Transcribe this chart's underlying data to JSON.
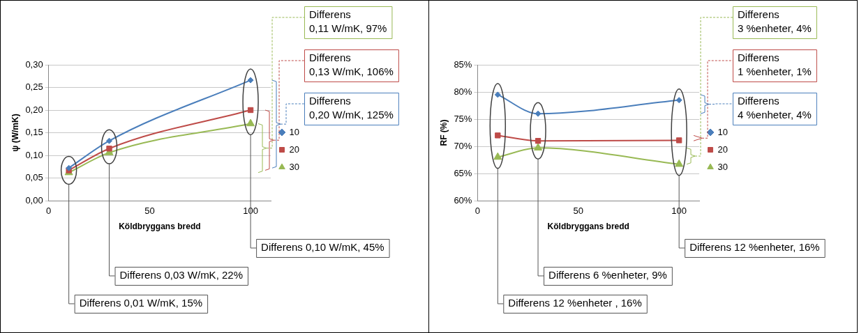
{
  "chart_data": [
    {
      "type": "line",
      "xlabel": "Köldbryggans bredd",
      "ylabel": "ψ (W/mK)",
      "x": [
        10,
        30,
        100
      ],
      "series": [
        {
          "name": "10",
          "color": "#4a7ebb",
          "marker": "diamond",
          "values": [
            0.072,
            0.132,
            0.266
          ]
        },
        {
          "name": "20",
          "color": "#be4b48",
          "marker": "square",
          "values": [
            0.067,
            0.115,
            0.2
          ]
        },
        {
          "name": "30",
          "color": "#98b954",
          "marker": "triangle",
          "values": [
            0.062,
            0.106,
            0.17
          ]
        }
      ],
      "xlim": [
        0,
        110
      ],
      "xticks": [
        0,
        50,
        100
      ],
      "ylim": [
        0,
        0.3
      ],
      "yticks": [
        {
          "value": 0,
          "label": "0,00"
        },
        {
          "value": 0.05,
          "label": "0,05"
        },
        {
          "value": 0.1,
          "label": "0,10"
        },
        {
          "value": 0.15,
          "label": "0,15"
        },
        {
          "value": 0.2,
          "label": "0,20"
        },
        {
          "value": 0.25,
          "label": "0,25"
        },
        {
          "value": 0.3,
          "label": "0,30"
        }
      ],
      "grid": "y",
      "legend": "right",
      "annotations": [
        "Differens\n0,11 W/mK, 97%",
        "Differens\n0,13 W/mK, 106%",
        "Differens\n0,20 W/mK, 125%",
        "Differens 0,10 W/mK, 45%",
        "Differens 0,03 W/mK, 22%",
        "Differens 0,01 W/mK, 15%"
      ]
    },
    {
      "type": "line",
      "xlabel": "Köldbryggans bredd",
      "ylabel": "RF (%)",
      "x": [
        10,
        30,
        100
      ],
      "series": [
        {
          "name": "10",
          "color": "#4a7ebb",
          "marker": "diamond",
          "values": [
            79.5,
            76.0,
            78.5
          ]
        },
        {
          "name": "20",
          "color": "#be4b48",
          "marker": "square",
          "values": [
            72.0,
            71.0,
            71.1
          ]
        },
        {
          "name": "30",
          "color": "#98b954",
          "marker": "triangle",
          "values": [
            68.0,
            69.7,
            66.7
          ]
        }
      ],
      "xlim": [
        0,
        110
      ],
      "xticks": [
        0,
        50,
        100
      ],
      "ylim": [
        60,
        85
      ],
      "yticks": [
        {
          "value": 60,
          "label": "60%"
        },
        {
          "value": 65,
          "label": "65%"
        },
        {
          "value": 70,
          "label": "70%"
        },
        {
          "value": 75,
          "label": "75%"
        },
        {
          "value": 80,
          "label": "80%"
        },
        {
          "value": 85,
          "label": "85%"
        }
      ],
      "grid": "y",
      "legend": "right",
      "annotations": [
        "Differens\n3 %enheter, 4%",
        "Differens\n1 %enheter, 1%",
        "Differens\n4 %enheter, 4%",
        "Differens 12 %enheter, 16%",
        "Differens 6 %enheter, 9%",
        "Differens 12 %enheter , 16%"
      ]
    }
  ]
}
